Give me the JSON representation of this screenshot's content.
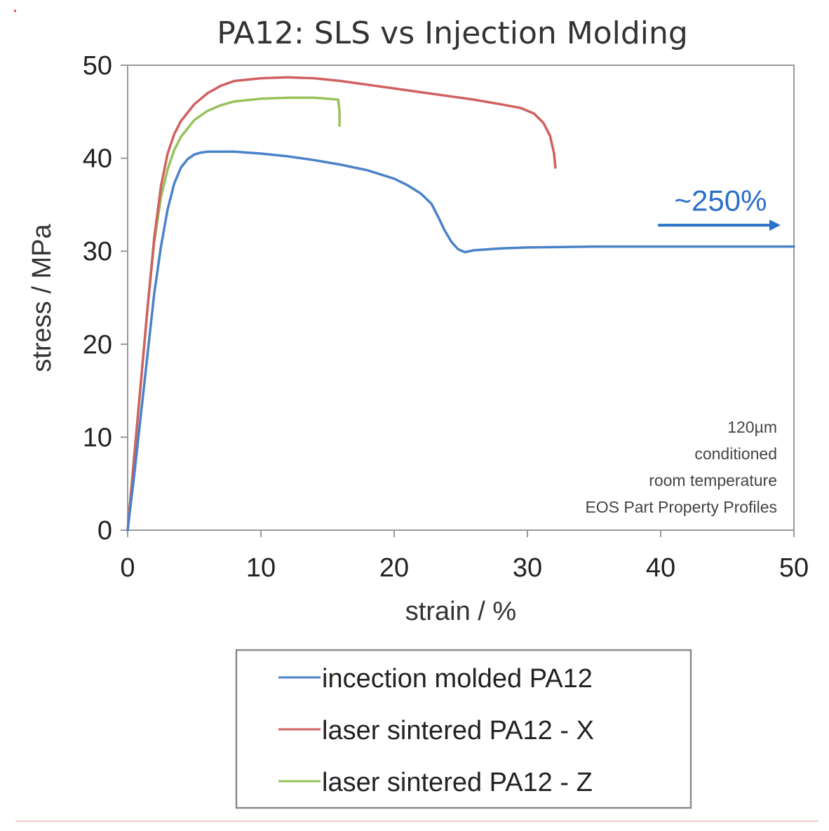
{
  "chart_data": {
    "type": "line",
    "title": "PA12: SLS vs Injection Molding",
    "xlabel": "strain / %",
    "ylabel": "stress / MPa",
    "xlim": [
      0,
      50
    ],
    "ylim": [
      0,
      50
    ],
    "xticks": [
      0,
      10,
      20,
      30,
      40,
      50
    ],
    "yticks": [
      0,
      10,
      20,
      30,
      40,
      50
    ],
    "grid": false,
    "legend_position": "bottom",
    "series": [
      {
        "name": "incection molded PA12",
        "color": "#4a82c8",
        "x": [
          0,
          0.5,
          1,
          1.5,
          2,
          2.5,
          3,
          3.5,
          4,
          4.5,
          5,
          5.5,
          6,
          8,
          10,
          12,
          14,
          16,
          18,
          20,
          21,
          22,
          22.8,
          23.3,
          23.8,
          24.3,
          24.8,
          25.3,
          26,
          28,
          30,
          35,
          40,
          45,
          50
        ],
        "y": [
          0,
          6,
          12.5,
          19,
          25.5,
          30.5,
          34.5,
          37.3,
          39,
          39.9,
          40.4,
          40.6,
          40.7,
          40.7,
          40.5,
          40.2,
          39.8,
          39.3,
          38.7,
          37.8,
          37.1,
          36.2,
          35.1,
          33.7,
          32.2,
          31,
          30.2,
          29.9,
          30.1,
          30.3,
          30.4,
          30.5,
          30.5,
          30.5,
          30.5
        ]
      },
      {
        "name": "laser sintered PA12 - X",
        "color": "#d06060",
        "x": [
          0,
          0.5,
          1,
          1.5,
          2,
          2.5,
          3,
          3.5,
          4,
          5,
          6,
          7,
          8,
          10,
          12,
          14,
          16,
          18,
          20,
          22,
          24,
          26,
          28,
          29.5,
          30.5,
          31.2,
          31.7,
          32,
          32.1
        ],
        "y": [
          0,
          8,
          16,
          24,
          31.5,
          37,
          40.5,
          42.6,
          44,
          45.8,
          47,
          47.8,
          48.3,
          48.6,
          48.7,
          48.6,
          48.3,
          47.9,
          47.5,
          47.1,
          46.7,
          46.3,
          45.8,
          45.4,
          44.8,
          43.8,
          42.4,
          40.5,
          39
        ]
      },
      {
        "name": "laser sintered PA12 - Z",
        "color": "#96c25a",
        "x": [
          0,
          0.5,
          1,
          1.5,
          2,
          2.5,
          3,
          3.5,
          4,
          5,
          6,
          7,
          8,
          10,
          12,
          14,
          15,
          15.8,
          15.9,
          15.9
        ],
        "y": [
          0,
          8,
          16,
          24,
          31,
          35.8,
          38.8,
          40.9,
          42.3,
          44.1,
          45.1,
          45.7,
          46.1,
          46.4,
          46.5,
          46.5,
          46.4,
          46.3,
          45,
          43.5
        ]
      }
    ],
    "annotations": {
      "callout": {
        "text": "~250%",
        "color": "#2b70c9",
        "x": 44.5,
        "y": 35.4,
        "arrow_from_x": 39.8,
        "arrow_to_x": 49,
        "arrow_y": 32.8
      },
      "notes": {
        "lines": [
          "120µm",
          "conditioned",
          "room temperature",
          "EOS Part Property Profiles"
        ],
        "position": "bottom-right"
      }
    }
  }
}
